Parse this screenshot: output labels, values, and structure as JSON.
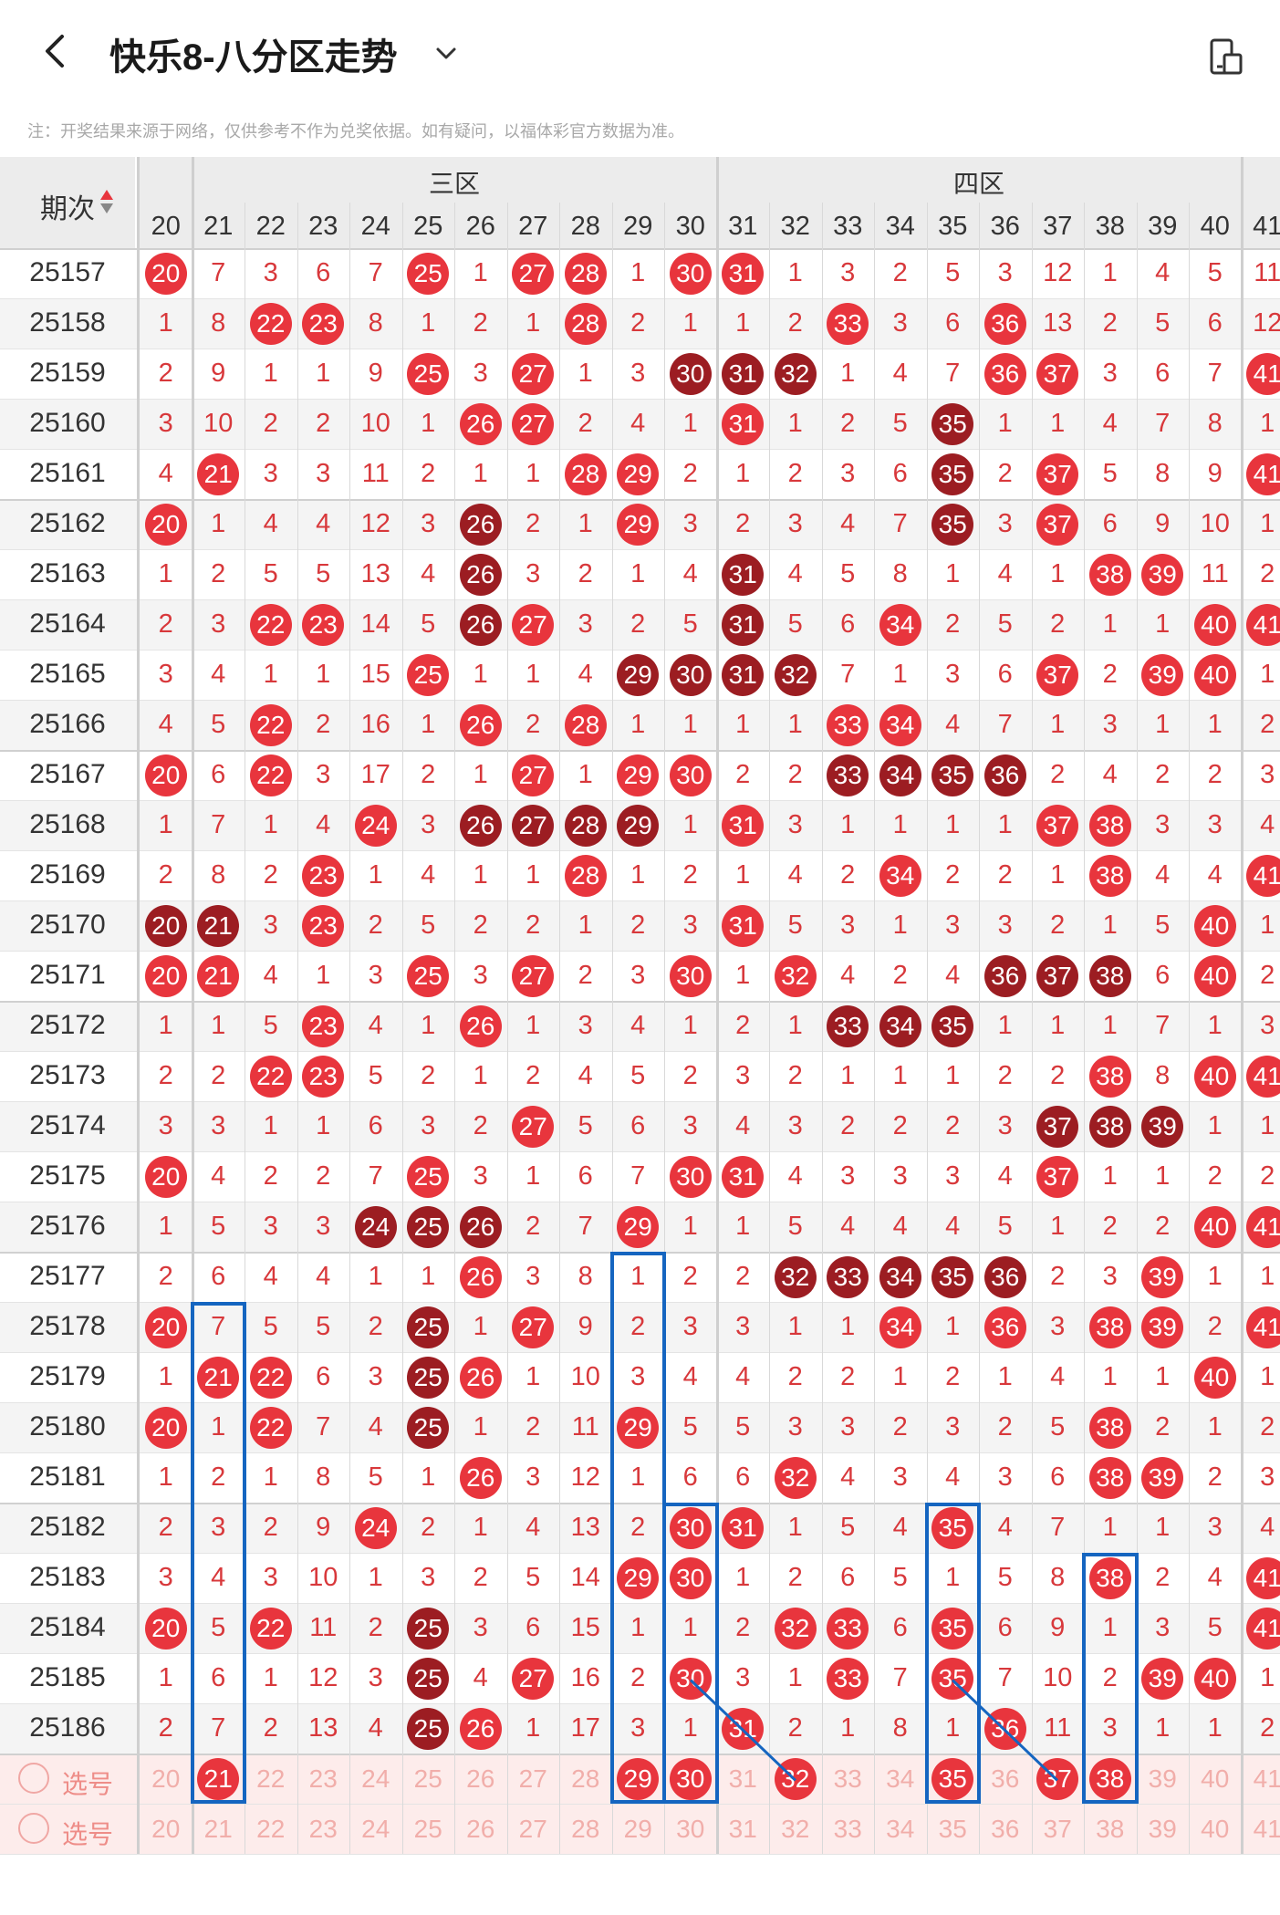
{
  "header": {
    "title": "快乐8-八分区走势",
    "note": "注：开奖结果来源于网络，仅供参考不作为兑奖依据。如有疑问，以福体彩官方数据为准。"
  },
  "table": {
    "issue_header": "期次",
    "zone3_label": "三区",
    "zone4_label": "四区",
    "columns": [
      "20",
      "21",
      "22",
      "23",
      "24",
      "25",
      "26",
      "27",
      "28",
      "29",
      "30",
      "31",
      "32",
      "33",
      "34",
      "35",
      "36",
      "37",
      "38",
      "39",
      "40",
      "41"
    ],
    "rows": [
      {
        "issue": "25157",
        "cells": [
          "B20",
          "7",
          "3",
          "6",
          "7",
          "B25",
          "1",
          "B27",
          "B28",
          "1",
          "B30",
          "B31",
          "1",
          "3",
          "2",
          "5",
          "3",
          "12",
          "1",
          "4",
          "5",
          "11"
        ]
      },
      {
        "issue": "25158",
        "cells": [
          "1",
          "8",
          "B22",
          "B23",
          "8",
          "1",
          "2",
          "1",
          "B28",
          "2",
          "1",
          "1",
          "2",
          "B33",
          "3",
          "6",
          "B36",
          "13",
          "2",
          "5",
          "6",
          "12"
        ]
      },
      {
        "issue": "25159",
        "cells": [
          "2",
          "9",
          "1",
          "1",
          "9",
          "B25",
          "3",
          "B27",
          "1",
          "3",
          "D30",
          "D31",
          "D32",
          "1",
          "4",
          "7",
          "B36",
          "B37",
          "3",
          "6",
          "7",
          "B41"
        ]
      },
      {
        "issue": "25160",
        "cells": [
          "3",
          "10",
          "2",
          "2",
          "10",
          "1",
          "B26",
          "B27",
          "2",
          "4",
          "1",
          "B31",
          "1",
          "2",
          "5",
          "D35",
          "1",
          "1",
          "4",
          "7",
          "8",
          "1"
        ]
      },
      {
        "issue": "25161",
        "cells": [
          "4",
          "B21",
          "3",
          "3",
          "11",
          "2",
          "1",
          "1",
          "B28",
          "B29",
          "2",
          "1",
          "2",
          "3",
          "6",
          "D35",
          "2",
          "B37",
          "5",
          "8",
          "9",
          "B41"
        ]
      },
      {
        "issue": "25162",
        "cells": [
          "B20",
          "1",
          "4",
          "4",
          "12",
          "3",
          "D26",
          "2",
          "1",
          "B29",
          "3",
          "2",
          "3",
          "4",
          "7",
          "D35",
          "3",
          "B37",
          "6",
          "9",
          "10",
          "1"
        ]
      },
      {
        "issue": "25163",
        "cells": [
          "1",
          "2",
          "5",
          "5",
          "13",
          "4",
          "D26",
          "3",
          "2",
          "1",
          "4",
          "D31",
          "4",
          "5",
          "8",
          "1",
          "4",
          "1",
          "B38",
          "B39",
          "11",
          "2"
        ]
      },
      {
        "issue": "25164",
        "cells": [
          "2",
          "3",
          "B22",
          "B23",
          "14",
          "5",
          "D26",
          "B27",
          "3",
          "2",
          "5",
          "D31",
          "5",
          "6",
          "B34",
          "2",
          "5",
          "2",
          "1",
          "1",
          "B40",
          "B41"
        ]
      },
      {
        "issue": "25165",
        "cells": [
          "3",
          "4",
          "1",
          "1",
          "15",
          "B25",
          "1",
          "1",
          "4",
          "D29",
          "D30",
          "D31",
          "D32",
          "7",
          "1",
          "3",
          "6",
          "B37",
          "2",
          "B39",
          "B40",
          "1"
        ]
      },
      {
        "issue": "25166",
        "cells": [
          "4",
          "5",
          "B22",
          "2",
          "16",
          "1",
          "B26",
          "2",
          "B28",
          "1",
          "1",
          "1",
          "1",
          "B33",
          "B34",
          "4",
          "7",
          "1",
          "3",
          "1",
          "1",
          "2"
        ]
      },
      {
        "issue": "25167",
        "cells": [
          "B20",
          "6",
          "B22",
          "3",
          "17",
          "2",
          "1",
          "B27",
          "1",
          "B29",
          "B30",
          "2",
          "2",
          "D33",
          "D34",
          "D35",
          "D36",
          "2",
          "4",
          "2",
          "2",
          "3"
        ]
      },
      {
        "issue": "25168",
        "cells": [
          "1",
          "7",
          "1",
          "4",
          "B24",
          "3",
          "D26",
          "D27",
          "D28",
          "D29",
          "1",
          "B31",
          "3",
          "1",
          "1",
          "1",
          "1",
          "B37",
          "B38",
          "3",
          "3",
          "4"
        ]
      },
      {
        "issue": "25169",
        "cells": [
          "2",
          "8",
          "2",
          "B23",
          "1",
          "4",
          "1",
          "1",
          "B28",
          "1",
          "2",
          "1",
          "4",
          "2",
          "B34",
          "2",
          "2",
          "1",
          "B38",
          "4",
          "4",
          "B41"
        ]
      },
      {
        "issue": "25170",
        "cells": [
          "D20",
          "D21",
          "3",
          "B23",
          "2",
          "5",
          "2",
          "2",
          "1",
          "2",
          "3",
          "B31",
          "5",
          "3",
          "1",
          "3",
          "3",
          "2",
          "1",
          "5",
          "B40",
          "1"
        ]
      },
      {
        "issue": "25171",
        "cells": [
          "B20",
          "B21",
          "4",
          "1",
          "3",
          "B25",
          "3",
          "B27",
          "2",
          "3",
          "B30",
          "1",
          "B32",
          "4",
          "2",
          "4",
          "D36",
          "D37",
          "D38",
          "6",
          "B40",
          "2"
        ]
      },
      {
        "issue": "25172",
        "cells": [
          "1",
          "1",
          "5",
          "B23",
          "4",
          "1",
          "B26",
          "1",
          "3",
          "4",
          "1",
          "2",
          "1",
          "D33",
          "D34",
          "D35",
          "1",
          "1",
          "1",
          "7",
          "1",
          "3"
        ]
      },
      {
        "issue": "25173",
        "cells": [
          "2",
          "2",
          "B22",
          "B23",
          "5",
          "2",
          "1",
          "2",
          "4",
          "5",
          "2",
          "3",
          "2",
          "1",
          "1",
          "1",
          "2",
          "2",
          "B38",
          "8",
          "B40",
          "B41"
        ]
      },
      {
        "issue": "25174",
        "cells": [
          "3",
          "3",
          "1",
          "1",
          "6",
          "3",
          "2",
          "B27",
          "5",
          "6",
          "3",
          "4",
          "3",
          "2",
          "2",
          "2",
          "3",
          "D37",
          "D38",
          "D39",
          "1",
          "1"
        ]
      },
      {
        "issue": "25175",
        "cells": [
          "B20",
          "4",
          "2",
          "2",
          "7",
          "B25",
          "3",
          "1",
          "6",
          "7",
          "B30",
          "B31",
          "4",
          "3",
          "3",
          "3",
          "4",
          "B37",
          "1",
          "1",
          "2",
          "2"
        ]
      },
      {
        "issue": "25176",
        "cells": [
          "1",
          "5",
          "3",
          "3",
          "D24",
          "D25",
          "D26",
          "2",
          "7",
          "B29",
          "1",
          "1",
          "5",
          "4",
          "4",
          "4",
          "5",
          "1",
          "2",
          "2",
          "B40",
          "B41"
        ]
      },
      {
        "issue": "25177",
        "cells": [
          "2",
          "6",
          "4",
          "4",
          "1",
          "1",
          "B26",
          "3",
          "8",
          "1",
          "2",
          "2",
          "D32",
          "D33",
          "D34",
          "D35",
          "D36",
          "2",
          "3",
          "B39",
          "1",
          "1"
        ]
      },
      {
        "issue": "25178",
        "cells": [
          "B20",
          "7",
          "5",
          "5",
          "2",
          "D25",
          "1",
          "B27",
          "9",
          "2",
          "3",
          "3",
          "1",
          "1",
          "B34",
          "1",
          "B36",
          "3",
          "B38",
          "B39",
          "2",
          "B41"
        ]
      },
      {
        "issue": "25179",
        "cells": [
          "1",
          "B21",
          "B22",
          "6",
          "3",
          "D25",
          "B26",
          "1",
          "10",
          "3",
          "4",
          "4",
          "2",
          "2",
          "1",
          "2",
          "1",
          "4",
          "1",
          "1",
          "B40",
          "1"
        ]
      },
      {
        "issue": "25180",
        "cells": [
          "B20",
          "1",
          "B22",
          "7",
          "4",
          "D25",
          "1",
          "2",
          "11",
          "B29",
          "5",
          "5",
          "3",
          "3",
          "2",
          "3",
          "2",
          "5",
          "B38",
          "2",
          "1",
          "2"
        ]
      },
      {
        "issue": "25181",
        "cells": [
          "1",
          "2",
          "1",
          "8",
          "5",
          "1",
          "B26",
          "3",
          "12",
          "1",
          "6",
          "6",
          "B32",
          "4",
          "3",
          "4",
          "3",
          "6",
          "B38",
          "B39",
          "2",
          "3"
        ]
      },
      {
        "issue": "25182",
        "cells": [
          "2",
          "3",
          "2",
          "9",
          "B24",
          "2",
          "1",
          "4",
          "13",
          "2",
          "B30",
          "B31",
          "1",
          "5",
          "4",
          "B35",
          "4",
          "7",
          "1",
          "1",
          "3",
          "4"
        ]
      },
      {
        "issue": "25183",
        "cells": [
          "3",
          "4",
          "3",
          "10",
          "1",
          "3",
          "2",
          "5",
          "14",
          "B29",
          "B30",
          "1",
          "2",
          "6",
          "5",
          "1",
          "5",
          "8",
          "B38",
          "2",
          "4",
          "B41"
        ]
      },
      {
        "issue": "25184",
        "cells": [
          "B20",
          "5",
          "B22",
          "11",
          "2",
          "D25",
          "3",
          "6",
          "15",
          "1",
          "1",
          "2",
          "B32",
          "B33",
          "6",
          "B35",
          "6",
          "9",
          "1",
          "3",
          "5",
          "B41"
        ]
      },
      {
        "issue": "25185",
        "cells": [
          "1",
          "6",
          "1",
          "12",
          "3",
          "D25",
          "4",
          "B27",
          "16",
          "2",
          "B30",
          "3",
          "1",
          "B33",
          "7",
          "B35",
          "7",
          "10",
          "2",
          "B39",
          "B40",
          "1"
        ]
      },
      {
        "issue": "25186",
        "cells": [
          "2",
          "7",
          "2",
          "13",
          "4",
          "D25",
          "B26",
          "1",
          "17",
          "3",
          "1",
          "B31",
          "2",
          "1",
          "8",
          "1",
          "B36",
          "11",
          "3",
          "1",
          "1",
          "2"
        ]
      }
    ],
    "select_rows": [
      {
        "label": "选号",
        "selected": [
          "21",
          "29",
          "30",
          "32",
          "35",
          "37",
          "38"
        ]
      },
      {
        "label": "选号",
        "selected": []
      }
    ]
  }
}
